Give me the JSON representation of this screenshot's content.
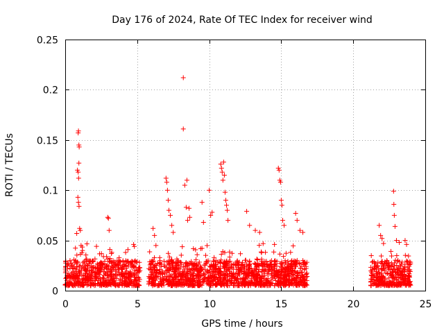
{
  "chart_data": {
    "type": "scatter",
    "title": "Day 176 of 2024, Rate Of TEC Index for receiver wind",
    "xlabel": "GPS time / hours",
    "ylabel": "ROTI / TECUs",
    "xlim": [
      0,
      25
    ],
    "ylim": [
      0,
      0.25
    ],
    "xticks": [
      0,
      5,
      10,
      15,
      20,
      25
    ],
    "xtick_labels": [
      "0",
      "5",
      "10",
      "15",
      "20",
      "25"
    ],
    "yticks": [
      0,
      0.05,
      0.1,
      0.15,
      0.2,
      0.25
    ],
    "ytick_labels": [
      "0",
      "0.05",
      "0.1",
      "0.15",
      "0.2",
      "0.25"
    ],
    "grid": true,
    "marker": "+",
    "color": "#ff0000",
    "series": [
      {
        "name": "ROTI",
        "coverage_intervals_hours": [
          [
            0.0,
            5.2
          ],
          [
            5.8,
            16.8
          ],
          [
            21.2,
            24.0
          ]
        ],
        "baseline_range": [
          0.005,
          0.03
        ],
        "points": [
          [
            0.9,
            0.157
          ],
          [
            0.92,
            0.159
          ],
          [
            0.95,
            0.145
          ],
          [
            0.97,
            0.143
          ],
          [
            0.85,
            0.12
          ],
          [
            0.9,
            0.118
          ],
          [
            0.95,
            0.127
          ],
          [
            0.93,
            0.112
          ],
          [
            0.88,
            0.093
          ],
          [
            0.92,
            0.088
          ],
          [
            0.96,
            0.084
          ],
          [
            1.0,
            0.062
          ],
          [
            1.05,
            0.06
          ],
          [
            0.8,
            0.057
          ],
          [
            1.1,
            0.045
          ],
          [
            1.2,
            0.04
          ],
          [
            2.95,
            0.073
          ],
          [
            3.0,
            0.072
          ],
          [
            3.05,
            0.06
          ],
          [
            3.1,
            0.041
          ],
          [
            4.75,
            0.046
          ],
          [
            4.8,
            0.044
          ],
          [
            6.1,
            0.062
          ],
          [
            6.2,
            0.055
          ],
          [
            6.3,
            0.045
          ],
          [
            7.0,
            0.112
          ],
          [
            7.05,
            0.108
          ],
          [
            7.1,
            0.1
          ],
          [
            7.15,
            0.09
          ],
          [
            7.2,
            0.08
          ],
          [
            7.3,
            0.075
          ],
          [
            7.4,
            0.065
          ],
          [
            7.5,
            0.058
          ],
          [
            8.2,
            0.212
          ],
          [
            8.2,
            0.161
          ],
          [
            8.3,
            0.105
          ],
          [
            8.4,
            0.083
          ],
          [
            8.45,
            0.11
          ],
          [
            8.5,
            0.07
          ],
          [
            8.6,
            0.082
          ],
          [
            8.65,
            0.073
          ],
          [
            9.5,
            0.088
          ],
          [
            9.6,
            0.068
          ],
          [
            10.0,
            0.1
          ],
          [
            10.1,
            0.075
          ],
          [
            10.2,
            0.078
          ],
          [
            10.8,
            0.126
          ],
          [
            10.85,
            0.122
          ],
          [
            10.9,
            0.118
          ],
          [
            10.95,
            0.11
          ],
          [
            11.0,
            0.128
          ],
          [
            11.05,
            0.115
          ],
          [
            11.1,
            0.098
          ],
          [
            11.15,
            0.09
          ],
          [
            11.2,
            0.085
          ],
          [
            11.25,
            0.08
          ],
          [
            11.3,
            0.07
          ],
          [
            12.6,
            0.079
          ],
          [
            12.8,
            0.065
          ],
          [
            13.2,
            0.06
          ],
          [
            13.5,
            0.058
          ],
          [
            14.8,
            0.122
          ],
          [
            14.85,
            0.12
          ],
          [
            14.9,
            0.11
          ],
          [
            14.95,
            0.108
          ],
          [
            15.0,
            0.09
          ],
          [
            15.05,
            0.085
          ],
          [
            15.1,
            0.07
          ],
          [
            15.2,
            0.065
          ],
          [
            16.0,
            0.077
          ],
          [
            16.1,
            0.07
          ],
          [
            16.3,
            0.06
          ],
          [
            16.5,
            0.058
          ],
          [
            21.8,
            0.065
          ],
          [
            21.9,
            0.055
          ],
          [
            22.0,
            0.052
          ],
          [
            22.1,
            0.047
          ],
          [
            22.8,
            0.099
          ],
          [
            22.82,
            0.086
          ],
          [
            22.85,
            0.075
          ],
          [
            22.9,
            0.064
          ],
          [
            23.0,
            0.05
          ],
          [
            23.2,
            0.048
          ],
          [
            23.6,
            0.05
          ],
          [
            23.7,
            0.046
          ]
        ]
      }
    ]
  }
}
